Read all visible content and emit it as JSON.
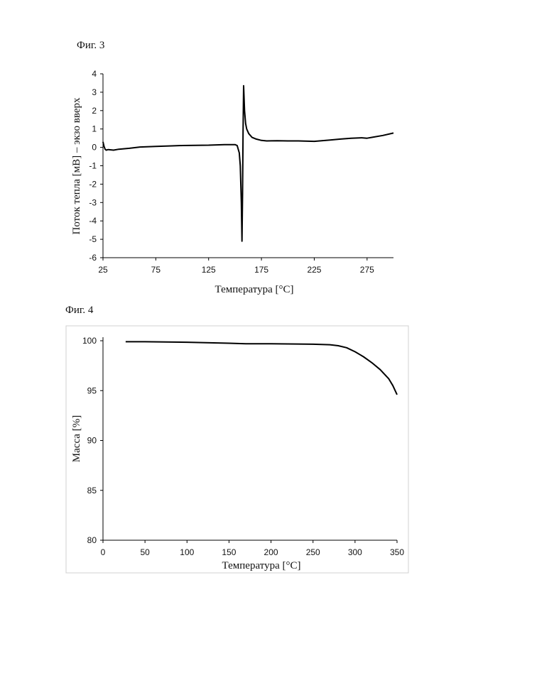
{
  "figures": {
    "fig3_label": "Фиг. 3",
    "fig4_label": "Фиг. 4"
  },
  "chart_data": [
    {
      "type": "line",
      "title": "",
      "xlabel": "Температура [°C]",
      "ylabel": "Поток тепла [мВ] – экзо вверх",
      "xlim": [
        25,
        300
      ],
      "ylim": [
        -6,
        4
      ],
      "xticks": [
        25,
        75,
        125,
        175,
        225,
        275
      ],
      "yticks": [
        -6,
        -5,
        -4,
        -3,
        -2,
        -1,
        0,
        1,
        2,
        3,
        4
      ],
      "grid": false,
      "color": "#000000",
      "series": [
        {
          "x": [
            25,
            26,
            27,
            28,
            30,
            35,
            40,
            50,
            60,
            75,
            90,
            100,
            125,
            140,
            150,
            152,
            154,
            155,
            156,
            156.6,
            157.1,
            157.6,
            158.1,
            159,
            160,
            161,
            163,
            166,
            170,
            175,
            180,
            190,
            200,
            210,
            225,
            240,
            250,
            260,
            270,
            275,
            280,
            290,
            300
          ],
          "y": [
            0.3,
            0.05,
            -0.1,
            -0.15,
            -0.12,
            -0.15,
            -0.1,
            -0.05,
            0.02,
            0.05,
            0.08,
            0.1,
            0.12,
            0.15,
            0.15,
            0.1,
            -0.3,
            -1.0,
            -3.0,
            -5.1,
            -2.5,
            0.8,
            3.35,
            2.0,
            1.3,
            1.0,
            0.75,
            0.55,
            0.45,
            0.38,
            0.35,
            0.36,
            0.35,
            0.35,
            0.33,
            0.4,
            0.45,
            0.5,
            0.52,
            0.5,
            0.55,
            0.65,
            0.78
          ]
        }
      ]
    },
    {
      "type": "line",
      "title": "",
      "xlabel": "Температура [°C]",
      "ylabel": "Масса [%]",
      "xlim": [
        0,
        350
      ],
      "ylim": [
        80,
        100
      ],
      "xticks": [
        0,
        50,
        100,
        150,
        200,
        250,
        300,
        350
      ],
      "yticks": [
        80,
        85,
        90,
        95,
        100
      ],
      "grid": false,
      "color": "#000000",
      "series": [
        {
          "x": [
            27,
            50,
            100,
            150,
            170,
            200,
            250,
            270,
            280,
            290,
            300,
            310,
            320,
            330,
            340,
            345,
            350
          ],
          "y": [
            99.9,
            99.9,
            99.85,
            99.75,
            99.7,
            99.7,
            99.65,
            99.6,
            99.5,
            99.3,
            98.9,
            98.4,
            97.8,
            97.1,
            96.2,
            95.5,
            94.6
          ]
        }
      ]
    }
  ]
}
